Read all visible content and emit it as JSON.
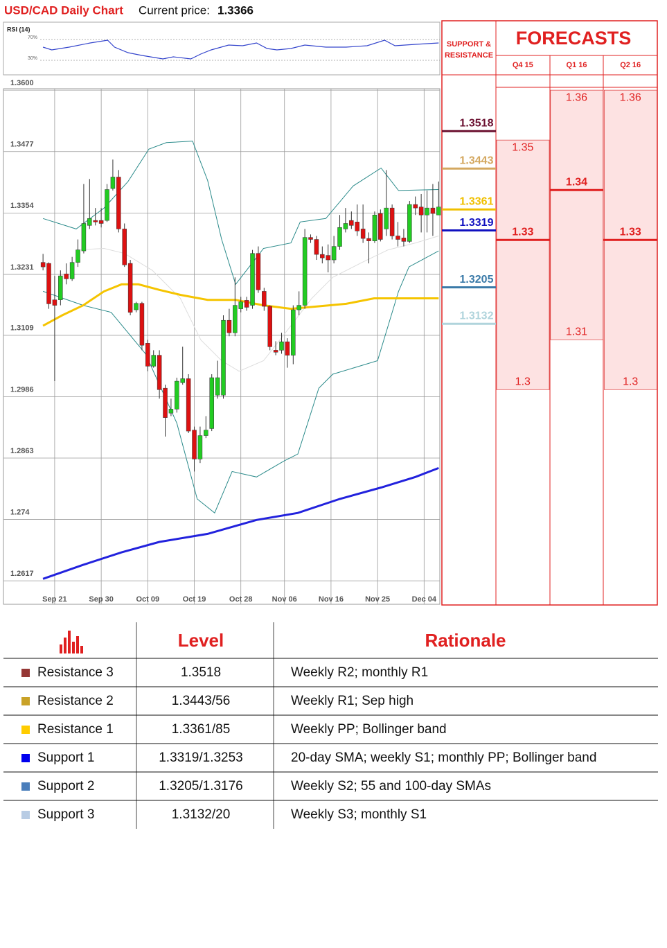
{
  "header": {
    "title": "USD/CAD Daily Chart",
    "price_label": "Current price:",
    "price": 1.3366
  },
  "chart_data": [
    {
      "type": "candlestick",
      "x": [
        0,
        1,
        2,
        3,
        4,
        5,
        6,
        7,
        8,
        9,
        10,
        11,
        12,
        13,
        14,
        15,
        16,
        17,
        18,
        19,
        20,
        21,
        22,
        23,
        24,
        25,
        26,
        27,
        28,
        29,
        30,
        31,
        32,
        33,
        34,
        35,
        36,
        37,
        38,
        39,
        40,
        41,
        42,
        43,
        44,
        45,
        46,
        47,
        48,
        49,
        50,
        51,
        52,
        53,
        54,
        55,
        56,
        57,
        58,
        59,
        60,
        61,
        62,
        63,
        64,
        65,
        66,
        67,
        68
      ],
      "open": [
        1.3255,
        1.3253,
        1.318,
        1.318,
        1.3232,
        1.3222,
        1.3255,
        1.3278,
        1.3329,
        1.3339,
        1.3339,
        1.3339,
        1.3403,
        1.3426,
        1.3322,
        1.3253,
        1.316,
        1.3173,
        1.3093,
        1.3047,
        1.3069,
        1.3003,
        1.2953,
        1.2961,
        1.3014,
        1.3022,
        1.2919,
        1.2861,
        1.2908,
        1.2922,
        1.2989,
        1.2989,
        1.3139,
        1.3114,
        1.3162,
        1.3179,
        1.3169,
        1.3273,
        1.3197,
        1.3167,
        1.3079,
        1.3079,
        1.3096,
        1.3069,
        1.316,
        1.3169,
        1.3305,
        1.3301,
        1.3271,
        1.3269,
        1.326,
        1.3287,
        1.3322,
        1.3339,
        1.3336,
        1.3322,
        1.3303,
        1.3298,
        1.3353,
        1.3322,
        1.3364,
        1.3308,
        1.3304,
        1.3297,
        1.3371,
        1.3366,
        1.335,
        1.3364,
        1.335
      ],
      "high": [
        1.3272,
        1.3255,
        1.3228,
        1.3239,
        1.3253,
        1.3266,
        1.3301,
        1.3412,
        1.3422,
        1.3364,
        1.3364,
        1.3412,
        1.3461,
        1.344,
        1.3333,
        1.326,
        1.3176,
        1.3176,
        1.31,
        1.3079,
        1.3079,
        1.301,
        1.2982,
        1.3024,
        1.3086,
        1.3031,
        1.2926,
        1.2926,
        1.2947,
        1.3031,
        1.3058,
        1.3149,
        1.3162,
        1.3225,
        1.3186,
        1.3186,
        1.328,
        1.3287,
        1.3204,
        1.3169,
        1.3097,
        1.3114,
        1.3103,
        1.3169,
        1.3197,
        1.3322,
        1.3311,
        1.3308,
        1.3287,
        1.3291,
        1.3308,
        1.335,
        1.3364,
        1.3357,
        1.3371,
        1.3371,
        1.3315,
        1.3357,
        1.3361,
        1.344,
        1.3371,
        1.3336,
        1.3322,
        1.3378,
        1.3387,
        1.3392,
        1.3399,
        1.3412,
        1.3417
      ],
      "low": [
        1.3239,
        1.3162,
        1.3017,
        1.3169,
        1.3211,
        1.3218,
        1.3246,
        1.3273,
        1.3322,
        1.3329,
        1.3325,
        1.3336,
        1.3399,
        1.3315,
        1.3246,
        1.3149,
        1.3155,
        1.3079,
        1.3037,
        1.3044,
        1.2982,
        1.2906,
        1.2947,
        1.2954,
        1.301,
        1.2913,
        1.2836,
        1.2853,
        1.2903,
        1.2917,
        1.2982,
        1.2982,
        1.3107,
        1.3107,
        1.3155,
        1.3158,
        1.3162,
        1.3194,
        1.3158,
        1.3079,
        1.3069,
        1.3072,
        1.3044,
        1.3051,
        1.3149,
        1.3162,
        1.3294,
        1.326,
        1.3253,
        1.3235,
        1.3253,
        1.328,
        1.3315,
        1.3322,
        1.3308,
        1.3294,
        1.3253,
        1.3294,
        1.3297,
        1.3308,
        1.3301,
        1.3287,
        1.3287,
        1.3294,
        1.335,
        1.3315,
        1.3315,
        1.3308,
        1.335
      ],
      "close": [
        1.3246,
        1.3172,
        1.3169,
        1.3228,
        1.3222,
        1.3255,
        1.328,
        1.3333,
        1.3343,
        1.3336,
        1.3333,
        1.3401,
        1.3426,
        1.3322,
        1.325,
        1.3155,
        1.3173,
        1.3089,
        1.3047,
        1.3069,
        1.3,
        1.2944,
        1.2961,
        1.3017,
        1.3022,
        1.2917,
        1.2861,
        1.2908,
        1.2919,
        1.3024,
        1.3024,
        1.3139,
        1.3114,
        1.3169,
        1.3176,
        1.3165,
        1.3273,
        1.32,
        1.3167,
        1.3086,
        1.3075,
        1.3096,
        1.3069,
        1.316,
        1.3169,
        1.3305,
        1.3301,
        1.3271,
        1.3264,
        1.326,
        1.3287,
        1.3325,
        1.3333,
        1.3329,
        1.3318,
        1.3303,
        1.3298,
        1.335,
        1.3301,
        1.3364,
        1.3308,
        1.3301,
        1.3297,
        1.3371,
        1.3364,
        1.335,
        1.3364,
        1.3353,
        1.3366
      ],
      "up_color": "#22cc22",
      "down_color": "#dd1111",
      "xlim": [
        -6.8,
        68.2
      ],
      "ylim": [
        1.257,
        1.3603
      ],
      "yticks": [
        {
          "value": 1.36,
          "label": "1.3600"
        },
        1.3477,
        1.3354,
        1.3231,
        1.3109,
        1.2986,
        1.2863,
        1.274,
        1.2617
      ],
      "xticks": [
        {
          "value": 2,
          "label": "Sep 21"
        },
        {
          "value": 10,
          "label": "Sep 30"
        },
        {
          "value": 18,
          "label": "Oct 09"
        },
        {
          "value": 26,
          "label": "Oct 19"
        },
        {
          "value": 34,
          "label": "Oct 28"
        },
        {
          "value": 41.5,
          "label": "Nov 06"
        },
        {
          "value": 49.5,
          "label": "Nov 16"
        },
        {
          "value": 57.5,
          "label": "Nov 25"
        },
        {
          "value": 65.5,
          "label": "Dec 04"
        }
      ],
      "grid": true,
      "overlays": [
        {
          "color": "#dddddd",
          "width": 1,
          "x": [
            5.7,
            10.5,
            14,
            18.8,
            23.6,
            27.1,
            30.7,
            33.7,
            37.9,
            42.6,
            46.2,
            49.8,
            54.5,
            59.3,
            64,
            68
          ],
          "values": [
            1.328,
            1.3283,
            1.3273,
            1.3239,
            1.3183,
            1.31,
            1.3058,
            1.3037,
            1.3058,
            1.3128,
            1.3183,
            1.3225,
            1.3253,
            1.328,
            1.3294,
            1.3308
          ]
        },
        {
          "color": "#2a8a8a",
          "width": 1,
          "x": [
            0,
            5.7,
            10.5,
            14.6,
            18.2,
            21.2,
            25.7,
            28.3,
            30.7,
            33.1,
            37.9,
            42.6,
            44.2,
            48.6,
            53.3,
            58.1,
            61.1,
            68
          ],
          "values": [
            1.3343,
            1.3322,
            1.3364,
            1.3417,
            1.3482,
            1.3495,
            1.3498,
            1.3419,
            1.3301,
            1.3211,
            1.3283,
            1.3294,
            1.3336,
            1.3343,
            1.3408,
            1.3444,
            1.3399,
            1.3401
          ]
        },
        {
          "color": "#2a8a8a",
          "width": 1,
          "x": [
            0,
            6.9,
            11.7,
            17.6,
            23,
            26.5,
            29.5,
            32.5,
            36.7,
            41.4,
            43.8,
            47.4,
            49.8,
            57.5,
            61.1,
            62.9,
            68
          ],
          "values": [
            1.3197,
            1.3169,
            1.3155,
            1.3072,
            1.2933,
            1.2781,
            1.2753,
            1.2836,
            1.2825,
            1.2857,
            1.2871,
            1.3003,
            1.3031,
            1.3058,
            1.3197,
            1.3246,
            1.3278
          ]
        },
        {
          "color": "#f5c400",
          "width": 3,
          "x": [
            0,
            3.3,
            6.9,
            10.5,
            13.5,
            16.4,
            20,
            23.6,
            28.3,
            33.1,
            37.9,
            42.6,
            47.4,
            52.1,
            56.9,
            61.7,
            68
          ],
          "values": [
            1.3128,
            1.3149,
            1.3169,
            1.3197,
            1.3211,
            1.3211,
            1.32,
            1.319,
            1.318,
            1.318,
            1.3169,
            1.3162,
            1.3167,
            1.3172,
            1.3183,
            1.3183,
            1.3183
          ]
        },
        {
          "color": "#2222dd",
          "width": 3,
          "x": [
            0,
            6.9,
            13.5,
            20,
            28.3,
            36.7,
            43.8,
            51,
            58.1,
            64,
            68
          ],
          "values": [
            1.2621,
            1.2649,
            1.2674,
            1.2695,
            1.2711,
            1.2739,
            1.2753,
            1.2781,
            1.2804,
            1.2825,
            1.2843
          ]
        }
      ],
      "levels_title": "SUPPORT & RESISTANCE",
      "levels": [
        {
          "value": 1.3518,
          "color": "#6b1030"
        },
        {
          "value": 1.3443,
          "color": "#d4a860"
        },
        {
          "value": 1.3361,
          "color": "#f0c000"
        },
        {
          "value": 1.3319,
          "color": "#1010c0"
        },
        {
          "value": 1.3205,
          "color": "#3a7aa8"
        },
        {
          "value": 1.3132,
          "color": "#b0d4dc"
        }
      ],
      "forecasts_title": "FORECASTS",
      "forecasts": [
        {
          "label": "Q4 15",
          "high": 1.35,
          "mid": 1.33,
          "low": 1.3
        },
        {
          "label": "Q1 16",
          "high": 1.36,
          "mid": 1.34,
          "low": 1.31
        },
        {
          "label": "Q2 16",
          "high": 1.36,
          "mid": 1.33,
          "low": 1.3
        }
      ]
    },
    {
      "type": "line",
      "title": "RSI (14)",
      "x": [
        0,
        1.5,
        4.5,
        8.1,
        11.1,
        12.3,
        14.6,
        17,
        20.6,
        22.4,
        25.4,
        27.1,
        28.9,
        31.9,
        34.3,
        36.7,
        38.5,
        40.2,
        42.6,
        45,
        48.6,
        52.1,
        55.7,
        58.7,
        60.5,
        64,
        68
      ],
      "values": [
        55.3,
        50,
        55.3,
        63.3,
        68.7,
        55.3,
        44.7,
        39.3,
        32.7,
        36.7,
        32.7,
        42,
        50,
        59.3,
        58,
        63.3,
        52.7,
        50,
        52.7,
        59.3,
        55.3,
        55.3,
        58,
        68.7,
        58,
        60.7,
        63.3
      ],
      "color": "#3344cc",
      "xlim": [
        -6.8,
        68.2
      ],
      "ylim": [
        2,
        103.3
      ],
      "yticks": [
        {
          "value": 70,
          "label": "70%"
        },
        {
          "value": 30,
          "label": "30%"
        }
      ]
    }
  ],
  "table": {
    "columns": [
      "Level",
      "Rationale"
    ],
    "rows": [
      {
        "color": "#953735",
        "name": "Resistance 3",
        "level": "1.3518",
        "rationale": "Weekly R2; monthly R1"
      },
      {
        "color": "#c9a227",
        "name": "Resistance 2",
        "level": "1.3443/56",
        "rationale": "Weekly R1; Sep high"
      },
      {
        "color": "#ffcc00",
        "name": "Resistance 1",
        "level": "1.3361/85",
        "rationale": "Weekly PP; Bollinger band"
      },
      {
        "color": "#0000ee",
        "name": "Support 1",
        "level": "1.3319/1.3253",
        "rationale": "20-day SMA; weekly S1; monthly PP; Bollinger band"
      },
      {
        "color": "#4a7ebb",
        "name": "Support 2",
        "level": "1.3205/1.3176",
        "rationale": "Weekly S2; 55 and 100-day SMAs"
      },
      {
        "color": "#b8cce4",
        "name": "Support 3",
        "level": "1.3132/20",
        "rationale": "Weekly S3; monthly S1"
      }
    ]
  }
}
